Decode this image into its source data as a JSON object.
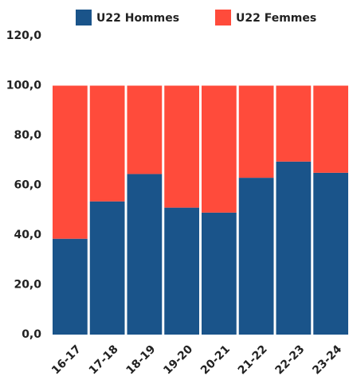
{
  "chart_data": {
    "type": "stacked-bar",
    "categories": [
      "16-17",
      "17-18",
      "18-19",
      "19-20",
      "20-21",
      "21-22",
      "22-23",
      "23-24"
    ],
    "series": [
      {
        "name": "U22 Hommes",
        "color": "#1a548a",
        "values": [
          38.5,
          53.5,
          64.5,
          51,
          49,
          63,
          69.5,
          65
        ]
      },
      {
        "name": "U22 Femmes",
        "color": "#ff4b3b",
        "values": [
          61.5,
          46.5,
          35.5,
          49,
          51,
          37,
          30.5,
          35
        ]
      }
    ],
    "ylim": [
      0,
      120
    ],
    "yticks": [
      {
        "value": 0,
        "label": "0,0"
      },
      {
        "value": 20,
        "label": "20,0"
      },
      {
        "value": 40,
        "label": "40,0"
      },
      {
        "value": 60,
        "label": "60,0"
      },
      {
        "value": 80,
        "label": "80,0"
      },
      {
        "value": 100,
        "label": "100,0"
      },
      {
        "value": 120,
        "label": "120,0"
      }
    ],
    "legend": "top",
    "grid": false
  }
}
